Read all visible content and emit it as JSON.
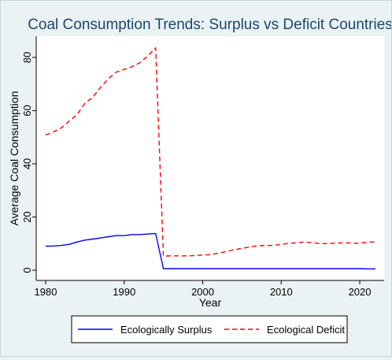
{
  "chart_data": {
    "type": "line",
    "title": "Coal Consumption Trends: Surplus vs Deficit Countries",
    "xlabel": "Year",
    "ylabel": "Average Coal Consumption",
    "xlim": [
      1980,
      2022
    ],
    "ylim": [
      0,
      85
    ],
    "xticks": [
      1980,
      1990,
      2000,
      2010,
      2020
    ],
    "yticks": [
      0,
      20,
      40,
      60,
      80
    ],
    "grid": false,
    "legend_position": "bottom",
    "series": [
      {
        "name": "Ecologically Surplus",
        "color": "#0000ff",
        "dash": "solid",
        "x": [
          1980,
          1981,
          1982,
          1983,
          1984,
          1985,
          1986,
          1987,
          1988,
          1989,
          1990,
          1991,
          1992,
          1993,
          1994,
          1995,
          1996,
          1997,
          1998,
          1999,
          2000,
          2001,
          2002,
          2003,
          2004,
          2005,
          2006,
          2007,
          2008,
          2009,
          2010,
          2011,
          2012,
          2013,
          2014,
          2015,
          2016,
          2017,
          2018,
          2019,
          2020,
          2021,
          2022
        ],
        "y": [
          9.0,
          9.1,
          9.3,
          9.7,
          10.6,
          11.3,
          11.7,
          12.1,
          12.6,
          13.0,
          13.0,
          13.4,
          13.4,
          13.6,
          13.8,
          0.6,
          0.6,
          0.6,
          0.6,
          0.6,
          0.6,
          0.6,
          0.6,
          0.6,
          0.6,
          0.6,
          0.6,
          0.6,
          0.6,
          0.6,
          0.6,
          0.6,
          0.6,
          0.6,
          0.6,
          0.6,
          0.6,
          0.6,
          0.6,
          0.6,
          0.6,
          0.5,
          0.5
        ]
      },
      {
        "name": "Ecological Deficit",
        "color": "#ff0000",
        "dash": "dashed",
        "x": [
          1980,
          1981,
          1982,
          1983,
          1984,
          1985,
          1986,
          1987,
          1988,
          1989,
          1990,
          1991,
          1992,
          1993,
          1994,
          1995,
          1996,
          1997,
          1998,
          1999,
          2000,
          2001,
          2002,
          2003,
          2004,
          2005,
          2006,
          2007,
          2008,
          2009,
          2010,
          2011,
          2012,
          2013,
          2014,
          2015,
          2016,
          2017,
          2018,
          2019,
          2020,
          2021,
          2022
        ],
        "y": [
          50.8,
          52.0,
          53.5,
          56.0,
          58.5,
          62.8,
          65.0,
          68.8,
          72.0,
          74.5,
          75.5,
          76.5,
          78.0,
          80.5,
          83.6,
          5.3,
          5.4,
          5.4,
          5.4,
          5.5,
          5.7,
          5.9,
          6.4,
          7.0,
          7.7,
          8.2,
          8.7,
          9.2,
          9.3,
          9.3,
          9.7,
          10.1,
          10.3,
          10.6,
          10.3,
          10.0,
          10.0,
          10.2,
          10.3,
          10.2,
          10.1,
          10.6,
          10.6
        ]
      }
    ]
  }
}
